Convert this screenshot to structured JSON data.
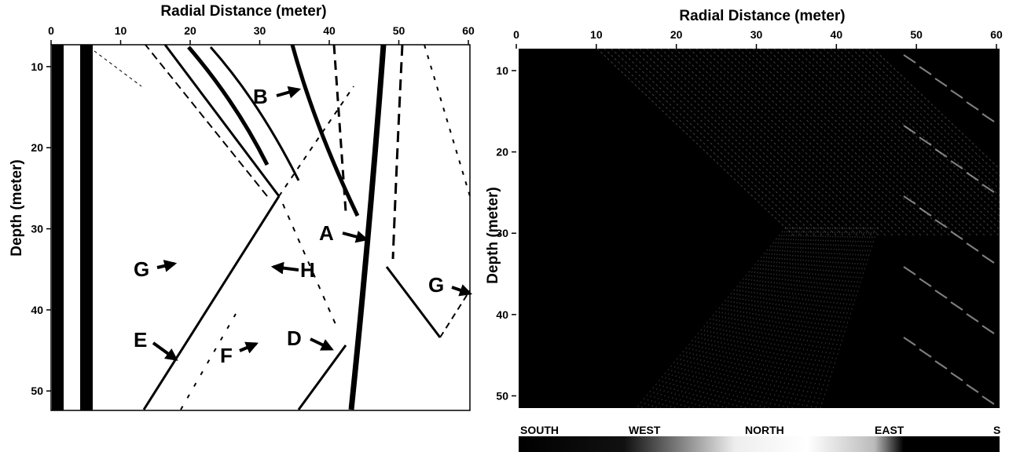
{
  "panels": [
    {
      "x_axis_title": "Radial Distance (meter)",
      "y_axis_title": "Depth (meter)",
      "xlim": [
        0,
        60
      ],
      "ylim": [
        7.3,
        52.3
      ],
      "xticks": [
        0,
        10,
        20,
        30,
        40,
        50,
        60
      ],
      "yticks": [
        10,
        20,
        30,
        40,
        50
      ],
      "annotations": [
        "B",
        "A",
        "G",
        "H",
        "E",
        "F",
        "D",
        "G"
      ]
    },
    {
      "x_axis_title": "Radial Distance (meter)",
      "y_axis_title": "Depth (meter)",
      "xlim": [
        0,
        60
      ],
      "ylim": [
        7.3,
        51.5
      ],
      "xticks": [
        0,
        10,
        20,
        30,
        40,
        50,
        60
      ],
      "yticks": [
        10,
        20,
        30,
        40,
        50
      ],
      "directions": [
        "SOUTH",
        "WEST",
        "NORTH",
        "EAST",
        "S"
      ]
    }
  ]
}
